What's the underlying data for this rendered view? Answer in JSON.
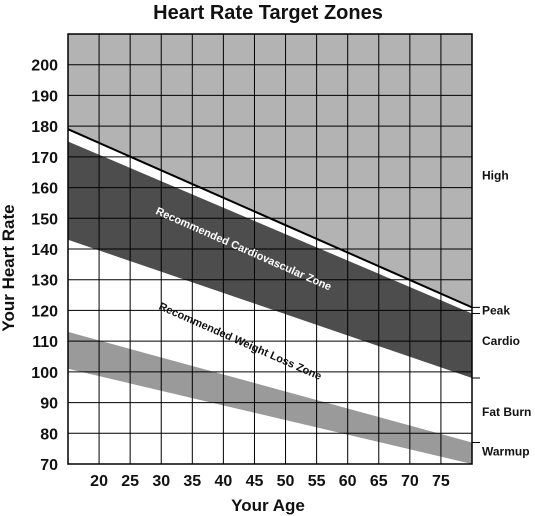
{
  "chart_data": {
    "type": "area",
    "title": "Heart Rate Target Zones",
    "xlabel": "Your Age",
    "ylabel": "Your Heart Rate",
    "xlim": [
      15,
      80
    ],
    "ylim": [
      70,
      210
    ],
    "x_ticks": [
      20,
      25,
      30,
      35,
      40,
      45,
      50,
      55,
      60,
      65,
      70,
      75
    ],
    "y_ticks": [
      70,
      80,
      90,
      100,
      110,
      120,
      130,
      140,
      150,
      160,
      170,
      180,
      190,
      200
    ],
    "grid": true,
    "max_heart_rate_line": {
      "x": [
        15,
        80
      ],
      "y": [
        179,
        121
      ]
    },
    "bands": [
      {
        "name": "High",
        "x": [
          15,
          80
        ],
        "lower": [
          179,
          121
        ],
        "upper": [
          210,
          210
        ],
        "color": "#b3b3b3"
      },
      {
        "name": "Recommended Cardiovascular Zone",
        "x": [
          15,
          80
        ],
        "lower": [
          143,
          98
        ],
        "upper": [
          175,
          119
        ],
        "color": "#4d4d4d",
        "text_color": "#ffffff"
      },
      {
        "name": "Fat Burn",
        "x": [
          15,
          80
        ],
        "lower": [
          101,
          70
        ],
        "upper": [
          113,
          77
        ],
        "color": "#9a9a9a"
      }
    ],
    "band_text": {
      "cardio": "Recommended Cardiovascular Zone",
      "weight_loss": "Recommended Weight Loss Zone"
    },
    "zone_labels": [
      {
        "label": "High",
        "y": 164
      },
      {
        "label": "Peak",
        "y": 120
      },
      {
        "label": "Cardio",
        "y": 110
      },
      {
        "label": "Fat Burn",
        "y": 87
      },
      {
        "label": "Warmup",
        "y": 74
      }
    ],
    "zone_separators": [
      121,
      119,
      98,
      77
    ]
  }
}
